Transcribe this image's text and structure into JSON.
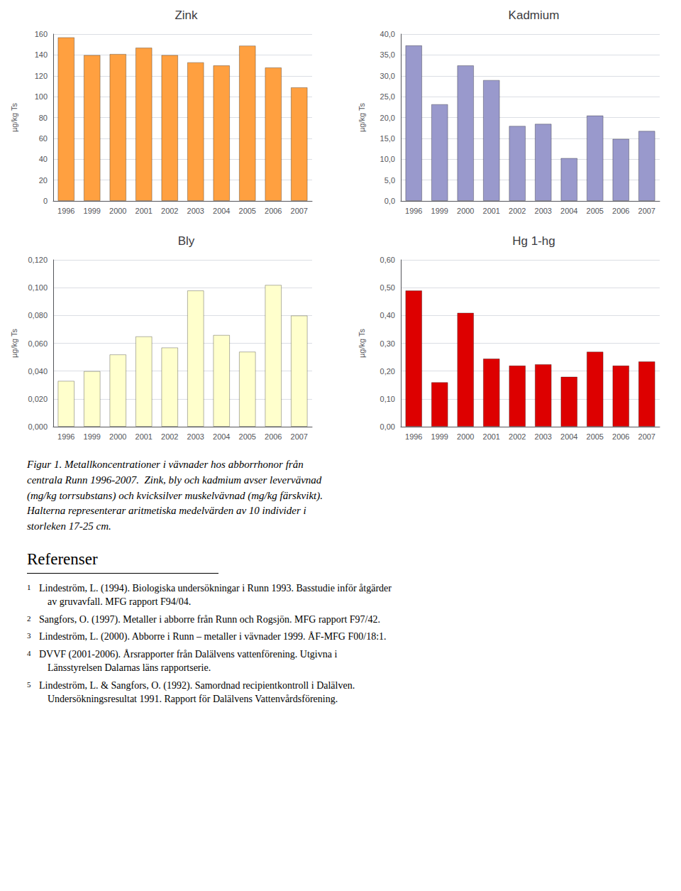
{
  "chart_data": [
    {
      "type": "bar",
      "title": "Zink",
      "categories": [
        "1996",
        "1999",
        "2000",
        "2001",
        "2002",
        "2003",
        "2004",
        "2005",
        "2006",
        "2007"
      ],
      "values": [
        157,
        140,
        141,
        147,
        140,
        133,
        130,
        149,
        128,
        109
      ],
      "color": "#FFA040",
      "ylabel": "µg/kg Ts",
      "ylim": [
        0,
        160
      ],
      "yticks": [
        0,
        20,
        40,
        60,
        80,
        100,
        120,
        140,
        160
      ],
      "grid": true
    },
    {
      "type": "bar",
      "title": "Kadmium",
      "categories": [
        "1996",
        "1999",
        "2000",
        "2001",
        "2002",
        "2003",
        "2004",
        "2005",
        "2006",
        "2007"
      ],
      "values": [
        37.3,
        23.2,
        32.5,
        29.0,
        18.0,
        18.5,
        10.3,
        20.5,
        14.9,
        16.8
      ],
      "color": "#9999CC",
      "ylabel": "µg/kg Ts",
      "ylim": [
        0,
        40
      ],
      "yticks": [
        {
          "value": 0,
          "label": "0,0"
        },
        {
          "value": 5,
          "label": "5,0"
        },
        {
          "value": 10,
          "label": "10,0"
        },
        {
          "value": 15,
          "label": "15,0"
        },
        {
          "value": 20,
          "label": "20,0"
        },
        {
          "value": 25,
          "label": "25,0"
        },
        {
          "value": 30,
          "label": "30,0"
        },
        {
          "value": 35,
          "label": "35,0"
        },
        {
          "value": 40,
          "label": "40,0"
        }
      ],
      "grid": true
    },
    {
      "type": "bar",
      "title": "Bly",
      "categories": [
        "1996",
        "1999",
        "2000",
        "2001",
        "2002",
        "2003",
        "2004",
        "2005",
        "2006",
        "2007"
      ],
      "values": [
        0.033,
        0.04,
        0.052,
        0.065,
        0.057,
        0.098,
        0.066,
        0.054,
        0.102,
        0.08
      ],
      "color": "#FFFFCC",
      "ylabel": "µg/kg Ts",
      "ylim": [
        0,
        0.12
      ],
      "yticks": [
        {
          "value": 0,
          "label": "0,000"
        },
        {
          "value": 0.02,
          "label": "0,020"
        },
        {
          "value": 0.04,
          "label": "0,040"
        },
        {
          "value": 0.06,
          "label": "0,060"
        },
        {
          "value": 0.08,
          "label": "0,080"
        },
        {
          "value": 0.1,
          "label": "0,100"
        },
        {
          "value": 0.12,
          "label": "0,120"
        }
      ],
      "grid": true
    },
    {
      "type": "bar",
      "title": "Hg 1-hg",
      "categories": [
        "1996",
        "1999",
        "2000",
        "2001",
        "2002",
        "2003",
        "2004",
        "2005",
        "2006",
        "2007"
      ],
      "values": [
        0.49,
        0.16,
        0.41,
        0.245,
        0.22,
        0.225,
        0.18,
        0.27,
        0.22,
        0.235
      ],
      "color": "#DD0000",
      "ylabel": "µg/kg Ts",
      "ylim": [
        0,
        0.6
      ],
      "yticks": [
        {
          "value": 0,
          "label": "0,00"
        },
        {
          "value": 0.1,
          "label": "0,10"
        },
        {
          "value": 0.2,
          "label": "0,20"
        },
        {
          "value": 0.3,
          "label": "0,30"
        },
        {
          "value": 0.4,
          "label": "0,40"
        },
        {
          "value": 0.5,
          "label": "0,50"
        },
        {
          "value": 0.6,
          "label": "0,60"
        }
      ],
      "grid": true
    }
  ],
  "caption": [
    "Figur 1. Metallkoncentrationer i vävnader hos abborrhonor från",
    "centrala Runn 1996-2007.  Zink, bly och kadmium avser levervävnad",
    "(mg/kg torrsubstans) och kvicksilver muskelvävnad (mg/kg färskvikt).",
    "Halterna representerar aritmetiska medelvärden av 10 individer i",
    "storleken 17-25 cm."
  ],
  "references": {
    "header": "Referenser",
    "entries": [
      {
        "number": "1",
        "lines": [
          "Lindeström, L. (1994). Biologiska undersökningar i Runn 1993. Basstudie inför åtgärder",
          "av gruvavfall. MFG rapport F94/04."
        ]
      },
      {
        "number": "2",
        "lines": [
          "Sangfors, O. (1997). Metaller i abborre från Runn och Rogsjön. MFG rapport F97/42."
        ]
      },
      {
        "number": "3",
        "lines": [
          "Lindeström, L. (2000). Abborre i Runn – metaller i vävnader 1999. ÅF-MFG F00/18:1."
        ]
      },
      {
        "number": "4",
        "lines": [
          "DVVF (2001-2006). Årsrapporter från Dalälvens vattenförening. Utgivna i",
          "Länsstyrelsen Dalarnas läns rapportserie."
        ]
      },
      {
        "number": "5",
        "lines": [
          "Lindeström, L. & Sangfors, O. (1992). Samordnad recipientkontroll i Dalälven.",
          "Undersökningsresultat 1991. Rapport för Dalälvens Vattenvårdsförening."
        ]
      }
    ]
  }
}
